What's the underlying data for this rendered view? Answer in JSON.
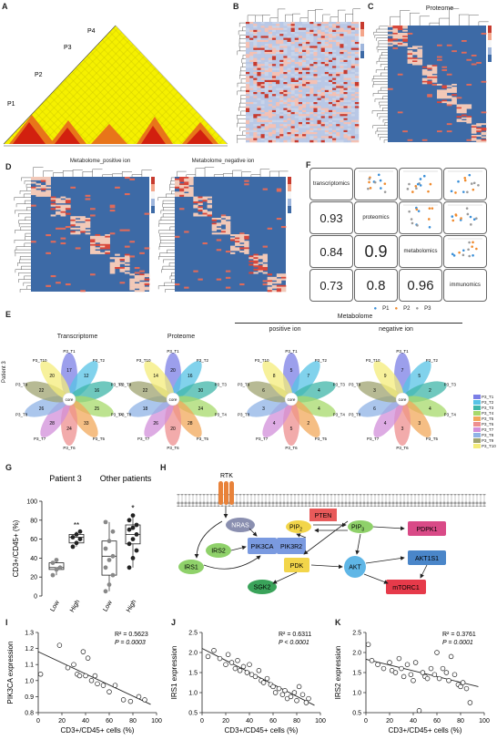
{
  "panels": {
    "A": "A",
    "B": "B",
    "C": "C",
    "D": "D",
    "E": "E",
    "F": "F",
    "G": "G",
    "H": "H",
    "I": "I",
    "J": "J",
    "K": "K"
  },
  "panelA": {
    "markers": [
      "P1",
      "P2",
      "P3",
      "P4"
    ]
  },
  "panelC": {
    "title": "Proteome"
  },
  "panelD": {
    "titles": [
      "Metabolome_positive ion",
      "Metabolome_negative ion"
    ]
  },
  "panelE": {
    "row_label": "Patient 3",
    "flower_titles": [
      "Transcriptome",
      "Proteome",
      "positive ion",
      "negative ion"
    ],
    "group_title": "Metabolome",
    "core_label": "core",
    "petals": [
      {
        "labels": [
          "P3_T1",
          "P3_T2",
          "P3_T3",
          "P3_T4",
          "P3_T5",
          "P3_T6",
          "P3_T7",
          "P3_T8",
          "P3_T9",
          "P3_T10"
        ],
        "values": [
          "17",
          "12",
          "16",
          "25",
          "33",
          "24",
          "28",
          "26",
          "22",
          "20"
        ]
      },
      {
        "labels": [
          "P3_T1",
          "P3_T2",
          "P3_T3",
          "P3_T4",
          "P3_T5",
          "P3_T6",
          "P3_T7",
          "P3_T8",
          "P3_T9",
          "P3_T10"
        ],
        "values": [
          "20",
          "16",
          "30",
          "24",
          "28",
          "20",
          "26",
          "18",
          "22",
          "14"
        ]
      },
      {
        "labels": [
          "P3_T1",
          "P3_T2",
          "P3_T3",
          "P3_T4",
          "P3_T5",
          "P3_T6",
          "P3_T7",
          "P3_T8",
          "P3_T9",
          "P3_T10"
        ],
        "values": [
          "5",
          "7",
          "4",
          "4",
          "2",
          "5",
          "4",
          "3",
          "6",
          "8"
        ]
      },
      {
        "labels": [
          "P3_T1",
          "P3_T2",
          "P3_T3",
          "P3_T4",
          "P3_T5",
          "P3_T6",
          "P3_T7",
          "P3_T8",
          "P3_T9",
          "P3_T10"
        ],
        "values": [
          "7",
          "5",
          "2",
          "4",
          "3",
          "3",
          "4",
          "6",
          "3",
          "9"
        ]
      }
    ],
    "legend": [
      "P3_T1",
      "P3_T2",
      "P3_T3",
      "P3_T4",
      "P3_T5",
      "P3_T6",
      "P3_T7",
      "P3_T8",
      "P3_T9",
      "P3_T10"
    ],
    "colors": [
      "#7b7fe6",
      "#57c3e6",
      "#3fb6a8",
      "#a7d96b",
      "#f2a85b",
      "#ee8f8f",
      "#d28fd9",
      "#8fb3e6",
      "#9fa370",
      "#f4ec7a"
    ]
  },
  "panelF": {
    "diag": [
      "transcriptomics",
      "proteomics",
      "metabolomics",
      "immunomics"
    ],
    "corr": [
      [
        "0.93"
      ],
      [
        "0.84",
        "0.9"
      ],
      [
        "0.73",
        "0.8",
        "0.96"
      ]
    ],
    "legend": [
      "P1",
      "P2",
      "P3"
    ],
    "legend_colors": [
      "#3a8fd8",
      "#f08a2c",
      "#9a9a9a"
    ]
  },
  "chart_data": [
    {
      "type": "box",
      "title_left": "Patient 3",
      "title_right": "Other patients",
      "ylabel": "CD3+/CD45+ (%)",
      "ylim": [
        0,
        100
      ],
      "yticks": [
        "0",
        "20",
        "40",
        "60",
        "80",
        "100"
      ],
      "categories": [
        "Low",
        "High",
        "Low",
        "High"
      ],
      "groups": [
        {
          "name": "Low",
          "points": [
            22,
            28,
            30,
            35,
            38
          ]
        },
        {
          "name": "High",
          "points": [
            52,
            56,
            60,
            62,
            65,
            68
          ]
        },
        {
          "name": "Low",
          "points": [
            5,
            12,
            22,
            30,
            38,
            42,
            50,
            58,
            68,
            78
          ]
        },
        {
          "name": "High",
          "points": [
            30,
            40,
            48,
            55,
            60,
            65,
            70,
            72,
            75,
            80,
            85
          ]
        }
      ],
      "significance": [
        "**",
        "*"
      ]
    },
    {
      "type": "scatter",
      "ylabel": "PIK3CA expression",
      "xlabel": "CD3+/CD45+ cells (%)",
      "xlim": [
        0,
        100
      ],
      "ylim": [
        0.8,
        1.3
      ],
      "xticks": [
        "0",
        "20",
        "40",
        "60",
        "80",
        "100"
      ],
      "yticks": [
        "0.8",
        "0.9",
        "1.0",
        "1.1",
        "1.2",
        "1.3"
      ],
      "stats": [
        "R² = 0.5623",
        "P = 0.0003"
      ],
      "x": [
        2,
        18,
        25,
        30,
        33,
        35,
        38,
        40,
        42,
        45,
        48,
        50,
        55,
        60,
        65,
        72,
        78,
        85,
        90
      ],
      "y": [
        1.04,
        1.22,
        1.08,
        1.1,
        1.04,
        1.03,
        1.18,
        1.03,
        1.14,
        1.0,
        1.03,
        0.98,
        0.97,
        0.93,
        0.97,
        0.88,
        0.87,
        0.9,
        0.88
      ]
    },
    {
      "type": "scatter",
      "ylabel": "IRS1 expression",
      "xlabel": "CD3+/CD45+ cells (%)",
      "xlim": [
        0,
        100
      ],
      "ylim": [
        0.5,
        2.5
      ],
      "xticks": [
        "0",
        "20",
        "40",
        "60",
        "80",
        "100"
      ],
      "yticks": [
        "0.5",
        "1.0",
        "1.5",
        "2.0",
        "2.5"
      ],
      "stats": [
        "R² = 0.6311",
        "P < 0.0001"
      ],
      "x": [
        5,
        10,
        15,
        20,
        22,
        25,
        28,
        30,
        32,
        35,
        38,
        40,
        42,
        45,
        48,
        50,
        52,
        55,
        58,
        60,
        62,
        65,
        68,
        70,
        72,
        75,
        78,
        80,
        82,
        85,
        88,
        90
      ],
      "y": [
        1.9,
        2.05,
        1.85,
        1.7,
        1.95,
        1.75,
        1.6,
        1.8,
        1.55,
        1.65,
        1.5,
        1.7,
        1.45,
        1.4,
        1.55,
        1.3,
        1.25,
        1.35,
        1.2,
        1.15,
        1.0,
        1.1,
        0.95,
        1.05,
        0.85,
        0.9,
        1.0,
        0.8,
        1.15,
        0.95,
        0.75,
        0.85
      ]
    },
    {
      "type": "scatter",
      "ylabel": "IRS2 expression",
      "xlabel": "CD3+/CD45+ cells (%)",
      "xlim": [
        0,
        100
      ],
      "ylim": [
        0.5,
        2.5
      ],
      "xticks": [
        "0",
        "20",
        "40",
        "60",
        "80",
        "100"
      ],
      "yticks": [
        "0.5",
        "1.0",
        "1.5",
        "2.0",
        "2.5"
      ],
      "stats": [
        "R² = 0.3761",
        "P = 0.0001"
      ],
      "x": [
        2,
        5,
        10,
        15,
        20,
        22,
        25,
        28,
        30,
        32,
        35,
        38,
        40,
        42,
        45,
        48,
        50,
        52,
        55,
        58,
        60,
        62,
        65,
        68,
        70,
        72,
        75,
        78,
        80,
        82,
        85,
        88
      ],
      "y": [
        2.2,
        1.8,
        1.7,
        1.6,
        1.75,
        1.55,
        1.5,
        1.85,
        1.6,
        1.4,
        1.7,
        1.45,
        1.3,
        1.75,
        0.55,
        1.5,
        1.4,
        1.35,
        1.6,
        1.45,
        2.0,
        1.35,
        1.6,
        1.5,
        1.3,
        1.9,
        1.45,
        1.2,
        1.15,
        1.25,
        1.1,
        0.75
      ]
    }
  ],
  "panelH": {
    "nodes": {
      "rtk": "RTK",
      "nras": "NRAS",
      "pten": "PTEN",
      "pip2": "PIP",
      "pip2_sub": "2",
      "pip3": "PIP",
      "pip3_sub": "3",
      "pik3ca": "PIK3CA",
      "pik3r2": "PIK3R2",
      "irs2": "IRS2",
      "irs1": "IRS1",
      "pdpk1": "PDPK1",
      "pdk": "PDK",
      "akt": "AKT",
      "akt1s1": "AKT1S1",
      "sgk2": "SGK2",
      "mtorc1": "mTORC1"
    },
    "colors": {
      "nras": "#8a8fb0",
      "pten": "#e85a5a",
      "pip": "#8fd16a",
      "pip2": "#f2d54a",
      "pik3": "#7a9ae0",
      "irs": "#8fd16a",
      "pdpk1": "#d94a87",
      "pdk": "#f2d54a",
      "akt": "#5fb6e6",
      "akt1s1": "#4a86c9",
      "sgk2": "#3aa35a",
      "mtorc1": "#e63a4a"
    }
  }
}
